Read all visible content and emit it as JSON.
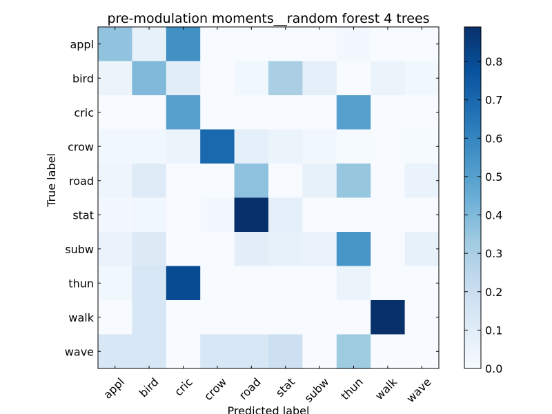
{
  "chart_data": {
    "type": "heatmap",
    "title": "pre-modulation moments__random forest 4 trees",
    "xlabel": "Predicted label",
    "ylabel": "True label",
    "x_categories": [
      "appl",
      "bird",
      "cric",
      "crow",
      "road",
      "stat",
      "subw",
      "thun",
      "walk",
      "wave"
    ],
    "y_categories": [
      "appl",
      "bird",
      "cric",
      "crow",
      "road",
      "stat",
      "subw",
      "thun",
      "walk",
      "wave"
    ],
    "values": [
      [
        0.36,
        0.07,
        0.56,
        0.0,
        0.0,
        0.0,
        0.0,
        0.02,
        0.0,
        0.0
      ],
      [
        0.05,
        0.4,
        0.1,
        0.0,
        0.03,
        0.3,
        0.08,
        0.0,
        0.05,
        0.03
      ],
      [
        0.0,
        0.0,
        0.5,
        0.0,
        0.0,
        0.0,
        0.0,
        0.5,
        0.0,
        0.0
      ],
      [
        0.03,
        0.03,
        0.05,
        0.7,
        0.08,
        0.05,
        0.03,
        0.01,
        0.0,
        0.01
      ],
      [
        0.04,
        0.11,
        0.0,
        0.0,
        0.37,
        0.0,
        0.07,
        0.35,
        0.0,
        0.06
      ],
      [
        0.02,
        0.03,
        0.0,
        0.02,
        0.89,
        0.08,
        0.0,
        0.0,
        0.0,
        0.0
      ],
      [
        0.06,
        0.12,
        0.0,
        0.0,
        0.09,
        0.07,
        0.06,
        0.54,
        0.0,
        0.07
      ],
      [
        0.03,
        0.14,
        0.8,
        0.0,
        0.0,
        0.0,
        0.0,
        0.05,
        0.0,
        0.0
      ],
      [
        0.0,
        0.14,
        0.0,
        0.0,
        0.0,
        0.0,
        0.0,
        0.0,
        0.89,
        0.0
      ],
      [
        0.14,
        0.14,
        0.0,
        0.14,
        0.14,
        0.19,
        0.0,
        0.33,
        0.0,
        0.0
      ]
    ],
    "colormap": "Blues",
    "colormap_low": "#f7fbff",
    "colormap_high": "#08306b",
    "colorbar": {
      "min": 0.0,
      "max": 0.89,
      "ticks": [
        0.0,
        0.1,
        0.2,
        0.3,
        0.4,
        0.5,
        0.6,
        0.7,
        0.8
      ],
      "tick_labels": [
        "0.0",
        "0.1",
        "0.2",
        "0.3",
        "0.4",
        "0.5",
        "0.6",
        "0.7",
        "0.8"
      ]
    },
    "grid": false
  }
}
